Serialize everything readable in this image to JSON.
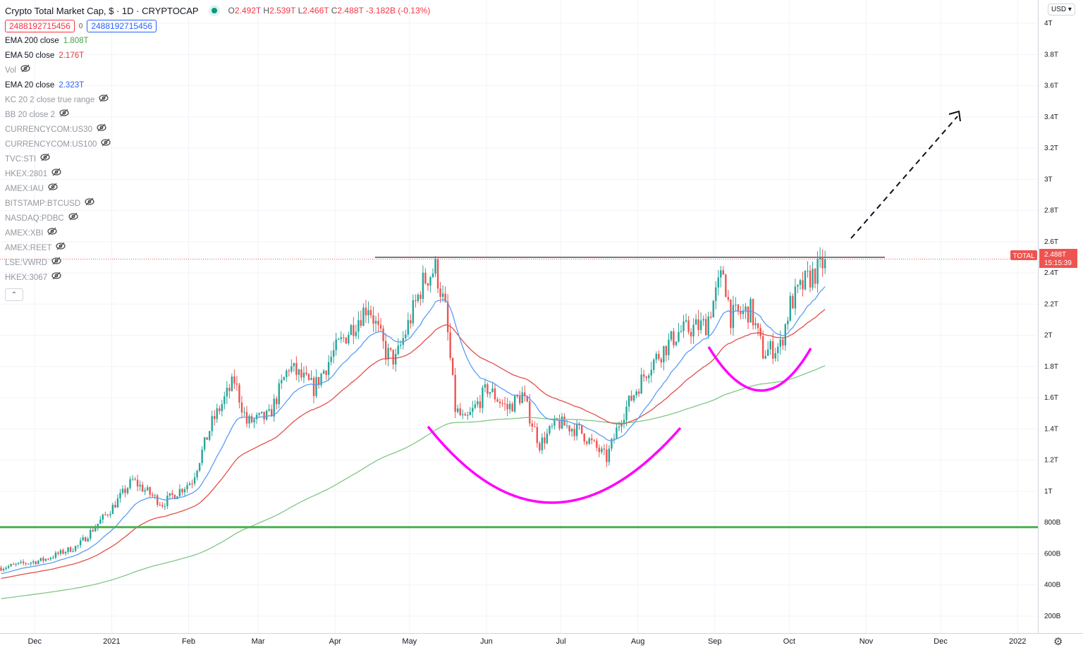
{
  "header": {
    "title": "Crypto Total Market Cap, $ · 1D · CRYPTOCAP",
    "ohlc": {
      "o_label": "O",
      "o": "2.492T",
      "h_label": "H",
      "h": "2.539T",
      "l_label": "L",
      "l": "2.466T",
      "c_label": "C",
      "c": "2.488T",
      "change": "-3.182B (-0.13%)"
    },
    "value_box_1": "2488192715456",
    "zero": "0",
    "value_box_2": "2488192715456"
  },
  "indicators": [
    {
      "name": "EMA 200 close",
      "value": "1.808T",
      "color": "#43a047",
      "hidden": false
    },
    {
      "name": "EMA 50 close",
      "value": "2.176T",
      "color": "#e53935",
      "hidden": false
    },
    {
      "name": "Vol",
      "value": "",
      "hidden": true
    },
    {
      "name": "EMA 20 close",
      "value": "2.323T",
      "color": "#2962ff",
      "hidden": false
    },
    {
      "name": "KC 20 2 close true range",
      "value": "",
      "hidden": true
    },
    {
      "name": "BB 20 close 2",
      "value": "",
      "hidden": true
    },
    {
      "name": "CURRENCYCOM:US30",
      "value": "",
      "hidden": true
    },
    {
      "name": "CURRENCYCOM:US100",
      "value": "",
      "hidden": true
    },
    {
      "name": "TVC:STI",
      "value": "",
      "hidden": true
    },
    {
      "name": "HKEX:2801",
      "value": "",
      "hidden": true
    },
    {
      "name": "AMEX:IAU",
      "value": "",
      "hidden": true
    },
    {
      "name": "BITSTAMP:BTCUSD",
      "value": "",
      "hidden": true
    },
    {
      "name": "NASDAQ:PDBC",
      "value": "",
      "hidden": true
    },
    {
      "name": "AMEX:XBI",
      "value": "",
      "hidden": true
    },
    {
      "name": "AMEX:REET",
      "value": "",
      "hidden": true
    },
    {
      "name": "LSE:VWRD",
      "value": "",
      "hidden": true
    },
    {
      "name": "HKEX:3067",
      "value": "",
      "hidden": true
    }
  ],
  "currency": "USD",
  "price_label": {
    "symbol": "TOTAL",
    "value": "2.488T",
    "countdown": "15:15:39"
  },
  "colors": {
    "up": "#26a69a",
    "down": "#ef5350",
    "ema20": "#5b9cf6",
    "ema50": "#e0504a",
    "ema200": "#81c784",
    "support": "#4caf50",
    "arc": "#ff00ff",
    "resistance": "#787b86"
  },
  "chart_data": {
    "type": "candlestick",
    "title": "Crypto Total Market Cap, $ · 1D · CRYPTOCAP",
    "y_ticks": [
      "4T",
      "3.8T",
      "3.6T",
      "3.4T",
      "3.2T",
      "3T",
      "2.8T",
      "2.6T",
      "2.4T",
      "2.2T",
      "2T",
      "1.8T",
      "1.6T",
      "1.4T",
      "1.2T",
      "1T",
      "800B",
      "600B",
      "400B",
      "200B"
    ],
    "y_tick_values": [
      4,
      3.8,
      3.6,
      3.4,
      3.2,
      3,
      2.8,
      2.6,
      2.4,
      2.2,
      2,
      1.8,
      1.6,
      1.4,
      1.2,
      1,
      0.8,
      0.6,
      0.4,
      0.2
    ],
    "ylim_T": [
      0.15,
      4.1
    ],
    "x_ticks": [
      {
        "label": "Dec",
        "day": 14
      },
      {
        "label": "2021",
        "day": 45
      },
      {
        "label": "Feb",
        "day": 76
      },
      {
        "label": "Mar",
        "day": 104
      },
      {
        "label": "Apr",
        "day": 135
      },
      {
        "label": "May",
        "day": 165
      },
      {
        "label": "Jun",
        "day": 196
      },
      {
        "label": "Jul",
        "day": 226
      },
      {
        "label": "Aug",
        "day": 257
      },
      {
        "label": "Sep",
        "day": 288
      },
      {
        "label": "Oct",
        "day": 318
      },
      {
        "label": "Nov",
        "day": 349
      },
      {
        "label": "Dec",
        "day": 379
      },
      {
        "label": "2022",
        "day": 410
      }
    ],
    "x_range_days": [
      0,
      418
    ],
    "close_keypoints_T": [
      [
        0,
        0.51
      ],
      [
        17,
        0.56
      ],
      [
        31,
        0.65
      ],
      [
        45,
        0.9
      ],
      [
        53,
        1.07
      ],
      [
        65,
        0.92
      ],
      [
        77,
        1.07
      ],
      [
        85,
        1.44
      ],
      [
        94,
        1.71
      ],
      [
        99,
        1.44
      ],
      [
        108,
        1.48
      ],
      [
        116,
        1.8
      ],
      [
        126,
        1.66
      ],
      [
        134,
        1.89
      ],
      [
        148,
        2.2
      ],
      [
        155,
        1.89
      ],
      [
        159,
        1.84
      ],
      [
        170,
        2.34
      ],
      [
        175,
        2.43
      ],
      [
        179,
        2.16
      ],
      [
        183,
        1.53
      ],
      [
        187,
        1.44
      ],
      [
        196,
        1.66
      ],
      [
        204,
        1.53
      ],
      [
        210,
        1.62
      ],
      [
        217,
        1.3
      ],
      [
        224,
        1.44
      ],
      [
        233,
        1.39
      ],
      [
        244,
        1.21
      ],
      [
        250,
        1.48
      ],
      [
        261,
        1.8
      ],
      [
        273,
        2.02
      ],
      [
        284,
        2.07
      ],
      [
        291,
        2.41
      ],
      [
        294,
        2.12
      ],
      [
        302,
        2.16
      ],
      [
        307,
        1.89
      ],
      [
        314,
        1.93
      ],
      [
        318,
        2.2
      ],
      [
        324,
        2.34
      ],
      [
        330,
        2.43
      ],
      [
        332,
        2.488
      ]
    ],
    "resistance_level_T": 2.5,
    "support_level_T": 0.77,
    "last_close_T": 2.488,
    "ema_last": {
      "ema20": 2.323,
      "ema50": 2.176,
      "ema200": 1.808
    }
  }
}
